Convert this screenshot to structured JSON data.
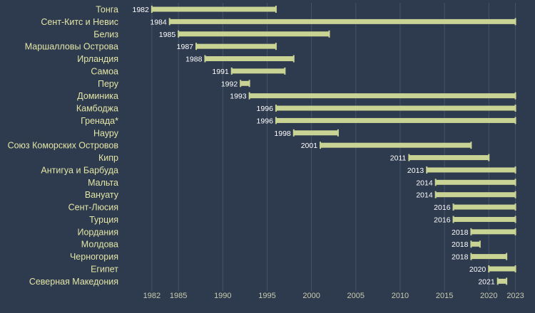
{
  "chart_data": {
    "type": "bar",
    "orientation": "horizontal-range",
    "title": "",
    "xlabel": "",
    "ylabel": "",
    "xlim": [
      1980,
      2024
    ],
    "x_ticks": [
      1982,
      1985,
      1990,
      1995,
      2000,
      2005,
      2010,
      2015,
      2020,
      2023
    ],
    "grid": true,
    "legend": "none",
    "colors": {
      "background": "#2e3a4d",
      "bar": "#c9d394",
      "label_text": "#e3e6a6",
      "start_label": "#ffffff",
      "tick_text": "#c8cbb0",
      "grid": "#46536a"
    },
    "rows": [
      {
        "country": "Тонга",
        "start": 1982,
        "end": 1996
      },
      {
        "country": "Сент-Китс и Невис",
        "start": 1984,
        "end": 2023
      },
      {
        "country": "Белиз",
        "start": 1985,
        "end": 2002
      },
      {
        "country": "Маршалловы Острова",
        "start": 1987,
        "end": 1996
      },
      {
        "country": "Ирландия",
        "start": 1988,
        "end": 1998
      },
      {
        "country": "Самоа",
        "start": 1991,
        "end": 1997
      },
      {
        "country": "Перу",
        "start": 1992,
        "end": 1993
      },
      {
        "country": "Доминика",
        "start": 1993,
        "end": 2023
      },
      {
        "country": "Камбоджа",
        "start": 1996,
        "end": 2023
      },
      {
        "country": "Гренада*",
        "start": 1996,
        "end": 2023
      },
      {
        "country": "Науру",
        "start": 1998,
        "end": 2003
      },
      {
        "country": "Союз Коморских Островов",
        "start": 2001,
        "end": 2018
      },
      {
        "country": "Кипр",
        "start": 2011,
        "end": 2020
      },
      {
        "country": "Антигуа и Барбуда",
        "start": 2013,
        "end": 2023
      },
      {
        "country": "Мальта",
        "start": 2014,
        "end": 2023
      },
      {
        "country": "Вануату",
        "start": 2014,
        "end": 2023
      },
      {
        "country": "Сент-Люсия",
        "start": 2016,
        "end": 2023
      },
      {
        "country": "Турция",
        "start": 2016,
        "end": 2023
      },
      {
        "country": "Иордания",
        "start": 2018,
        "end": 2023
      },
      {
        "country": "Молдова",
        "start": 2018,
        "end": 2019
      },
      {
        "country": "Черногория",
        "start": 2018,
        "end": 2022
      },
      {
        "country": "Египет",
        "start": 2020,
        "end": 2023
      },
      {
        "country": "Северная Македония",
        "start": 2021,
        "end": 2022
      }
    ]
  }
}
